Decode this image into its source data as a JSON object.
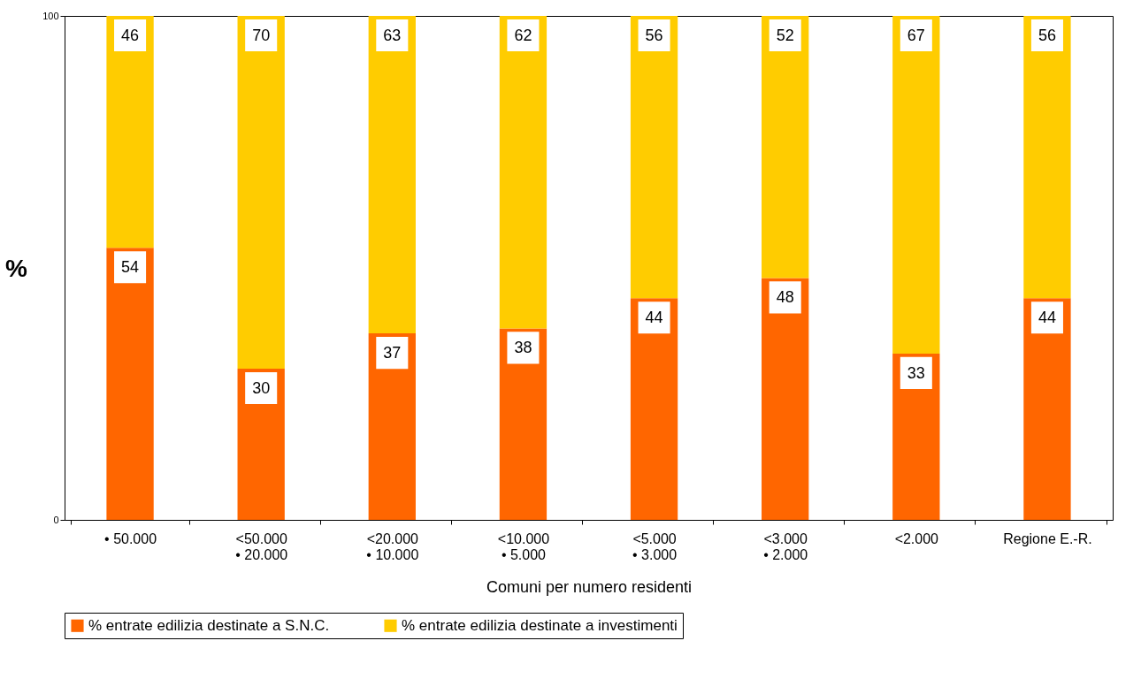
{
  "chart_data": {
    "type": "bar",
    "stacked": true,
    "ylabel": "%",
    "xlabel": "Comuni per numero residenti",
    "categories": [
      "• 50.000",
      "<50.000\n• 20.000",
      "<20.000\n• 10.000",
      "<10.000\n• 5.000",
      "<5.000\n• 3.000",
      "<3.000\n• 2.000",
      "<2.000",
      "Regione E.-R."
    ],
    "series": [
      {
        "name": "% entrate edilizia destinate a S.N.C.",
        "color": "#ff6600",
        "values": [
          54,
          30,
          37,
          38,
          44,
          48,
          33,
          44
        ]
      },
      {
        "name": "% entrate edilizia destinate a investimenti",
        "color": "#ffcc00",
        "values": [
          46,
          70,
          63,
          62,
          56,
          52,
          67,
          56
        ]
      }
    ],
    "ylim": [
      0,
      100
    ],
    "yticks": [
      0,
      100
    ],
    "grid": false,
    "legend": "bottom",
    "data_labels": true
  }
}
